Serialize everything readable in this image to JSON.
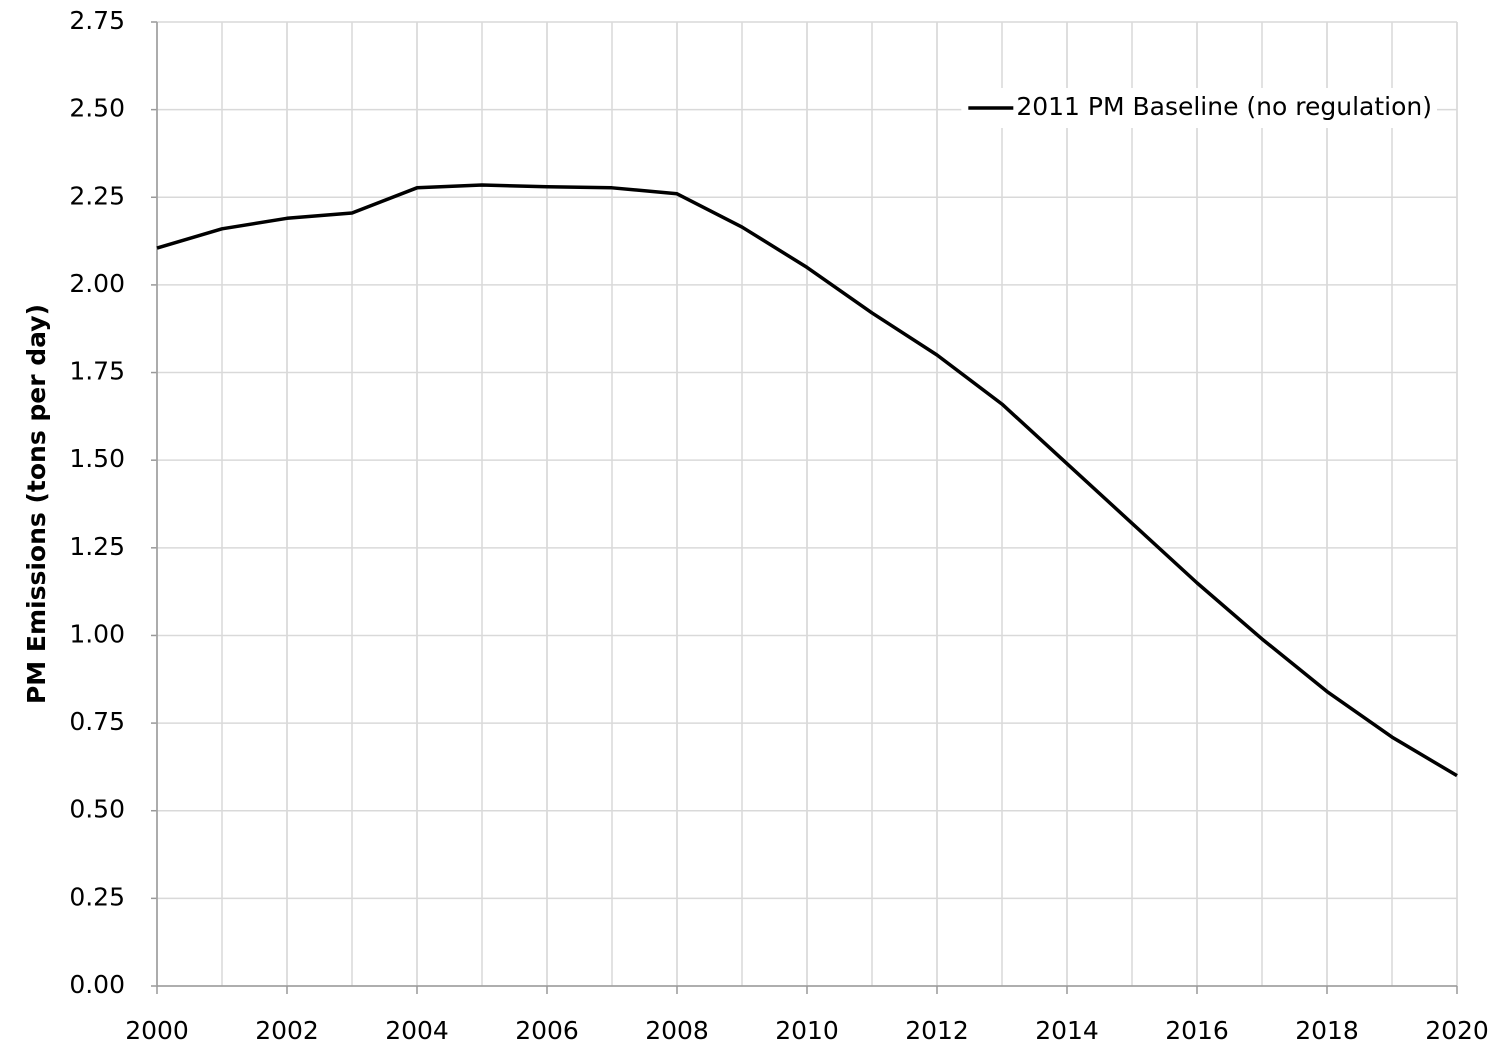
{
  "chart_data": {
    "type": "line",
    "y_label": "PM Emissions (tons per day)",
    "x": [
      2000,
      2001,
      2002,
      2003,
      2004,
      2005,
      2006,
      2007,
      2008,
      2009,
      2010,
      2011,
      2012,
      2013,
      2014,
      2015,
      2016,
      2017,
      2018,
      2019,
      2020
    ],
    "series": [
      {
        "name": "2011 PM Baseline (no regulation)",
        "color": "#000000",
        "values": [
          2.105,
          2.16,
          2.19,
          2.205,
          2.277,
          2.285,
          2.28,
          2.277,
          2.26,
          2.165,
          2.05,
          1.92,
          1.8,
          1.66,
          1.49,
          1.32,
          1.15,
          0.99,
          0.84,
          0.71,
          0.6
        ]
      }
    ],
    "xlim": [
      2000,
      2020
    ],
    "xticks": [
      2000,
      2002,
      2004,
      2006,
      2008,
      2010,
      2012,
      2014,
      2016,
      2018,
      2020
    ],
    "ylim": [
      0,
      2.75
    ],
    "yticks": [
      {
        "value": 0,
        "label": "0.00"
      },
      {
        "value": 0.25,
        "label": "0.25"
      },
      {
        "value": 0.5,
        "label": "0.50"
      },
      {
        "value": 0.75,
        "label": "0.75"
      },
      {
        "value": 1,
        "label": "1.00"
      },
      {
        "value": 1.25,
        "label": "1.25"
      },
      {
        "value": 1.5,
        "label": "1.50"
      },
      {
        "value": 1.75,
        "label": "1.75"
      },
      {
        "value": 2,
        "label": "2.00"
      },
      {
        "value": 2.25,
        "label": "2.25"
      },
      {
        "value": 2.5,
        "label": "2.50"
      },
      {
        "value": 2.75,
        "label": "2.75"
      }
    ],
    "grid": true,
    "legend": "upper right"
  }
}
